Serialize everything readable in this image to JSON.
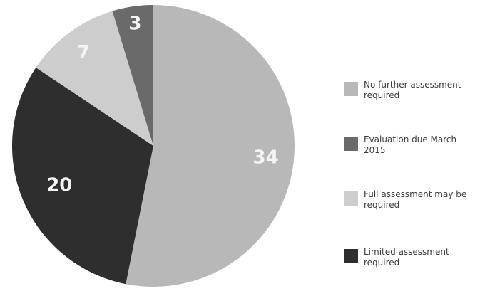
{
  "chart_data": {
    "type": "pie",
    "title": "",
    "slices": [
      {
        "label": "No further assessment required",
        "value": 34,
        "color": "#b8b8b8"
      },
      {
        "label": "Limited assessment required",
        "value": 20,
        "color": "#2e2e2e"
      },
      {
        "label": "Full assessment may be required",
        "value": 7,
        "color": "#cdcdcd"
      },
      {
        "label": "Evaluation due March 2015",
        "value": 3,
        "color": "#6a6a6a"
      }
    ],
    "legend": {
      "placement": "right",
      "items": [
        {
          "label": "No further assessment required",
          "color": "#b8b8b8"
        },
        {
          "label": "Evaluation due March 2015",
          "color": "#6a6a6a"
        },
        {
          "label": "Full assessment may be required",
          "color": "#cdcdcd"
        },
        {
          "label": "Limited assessment required",
          "color": "#2e2e2e"
        }
      ]
    }
  }
}
